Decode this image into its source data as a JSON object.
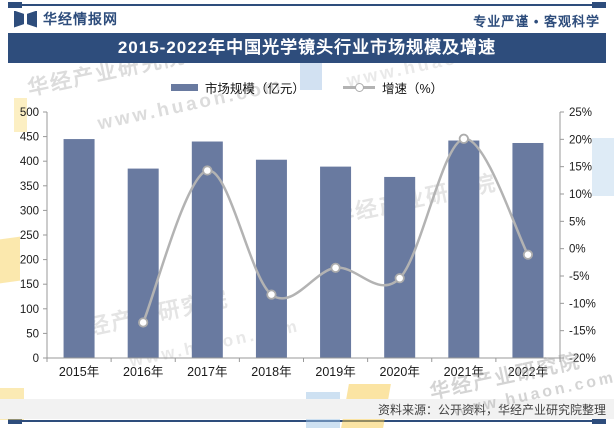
{
  "header": {
    "brand": "华经情报网",
    "slogan": "专业严谨 • 客观科学"
  },
  "title": "2015-2022年中国光学镜头行业市场规模及增速",
  "legend": [
    {
      "label": "市场规模（亿元）",
      "type": "bar"
    },
    {
      "label": "增速（%）",
      "type": "line"
    }
  ],
  "chart_data": {
    "type": "bar+line",
    "title": "2015-2022年中国光学镜头行业市场规模及增速",
    "categories": [
      "2015年",
      "2016年",
      "2017年",
      "2018年",
      "2019年",
      "2020年",
      "2021年",
      "2022年"
    ],
    "series": [
      {
        "name": "市场规模（亿元）",
        "type": "bar",
        "axis": "left",
        "color": "#697AA0",
        "values": [
          445,
          385,
          440,
          403,
          389,
          368,
          442,
          437
        ]
      },
      {
        "name": "增速（%）",
        "type": "line",
        "axis": "right",
        "color": "#B3B3B3",
        "marker_fill": "#FFFFFF",
        "marker_stroke": "#ACACAC",
        "values": [
          null,
          -13.5,
          14.3,
          -8.4,
          -3.5,
          -5.4,
          20.1,
          -1.1
        ]
      }
    ],
    "left_axis": {
      "min": 0,
      "max": 500,
      "step": 50,
      "label_suffix": ""
    },
    "right_axis": {
      "min": -20,
      "max": 25,
      "step": 5,
      "label_suffix": "%"
    },
    "grid": false,
    "legend_position": "top"
  },
  "source": "资料来源：公开资料，华经产业研究院整理",
  "watermarks": {
    "name": "华经产业研究院",
    "url": "www.huaon.com"
  },
  "colors": {
    "navy": "#2E4D7C",
    "bar": "#697AA0",
    "line": "#B3B3B3",
    "axis": "#999999",
    "tick_text": "#1A1A1A",
    "source_bg": "#F2F2F2",
    "deco_yellow": "#F7C948",
    "deco_blue": "#9DC3E6"
  }
}
